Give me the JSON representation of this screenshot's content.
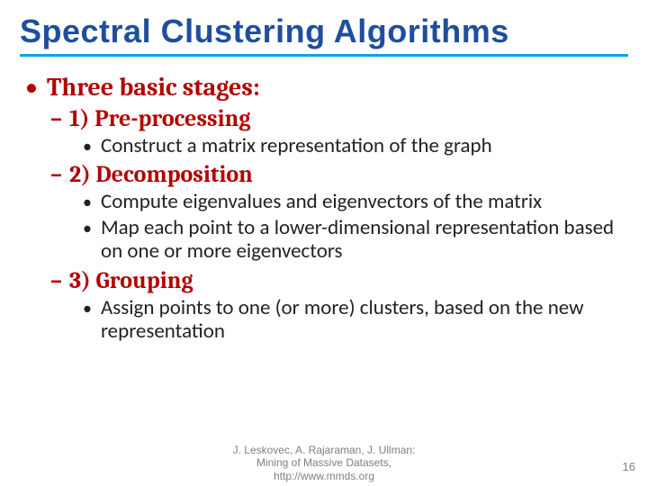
{
  "title": "Spectral Clustering Algorithms",
  "l1": {
    "bullet": "•",
    "text": "Three basic stages:"
  },
  "stage1": {
    "bullet": "–",
    "heading": "1) Pre-processing",
    "items": [
      {
        "bullet": "•",
        "text": "Construct a matrix representation of the graph"
      }
    ]
  },
  "stage2": {
    "bullet": "–",
    "heading": "2) Decomposition",
    "items": [
      {
        "bullet": "•",
        "text": "Compute eigenvalues and eigenvectors of the matrix"
      },
      {
        "bullet": "•",
        "text": "Map each point to a lower-dimensional representation based on one or more eigenvectors"
      }
    ]
  },
  "stage3": {
    "bullet": "–",
    "heading": "3) Grouping",
    "items": [
      {
        "bullet": "•",
        "text": "Assign points to one (or more) clusters, based on the new representation"
      }
    ]
  },
  "footer": {
    "line1": "J. Leskovec, A. Rajaraman, J. Ullman:",
    "line2": "Mining of Massive Datasets,",
    "line3": "http://www.mmds.org"
  },
  "page_number": "16",
  "colors": {
    "title": "#1f4e9c",
    "underline": "#06a3e8",
    "accent": "#b30000",
    "body": "#222222",
    "footer": "#7f7f7f",
    "background": "#ffffff"
  },
  "fontsizes": {
    "title": 36,
    "l1": 28,
    "l2": 26,
    "l3": 23,
    "footer": 12,
    "pagenum": 13
  }
}
